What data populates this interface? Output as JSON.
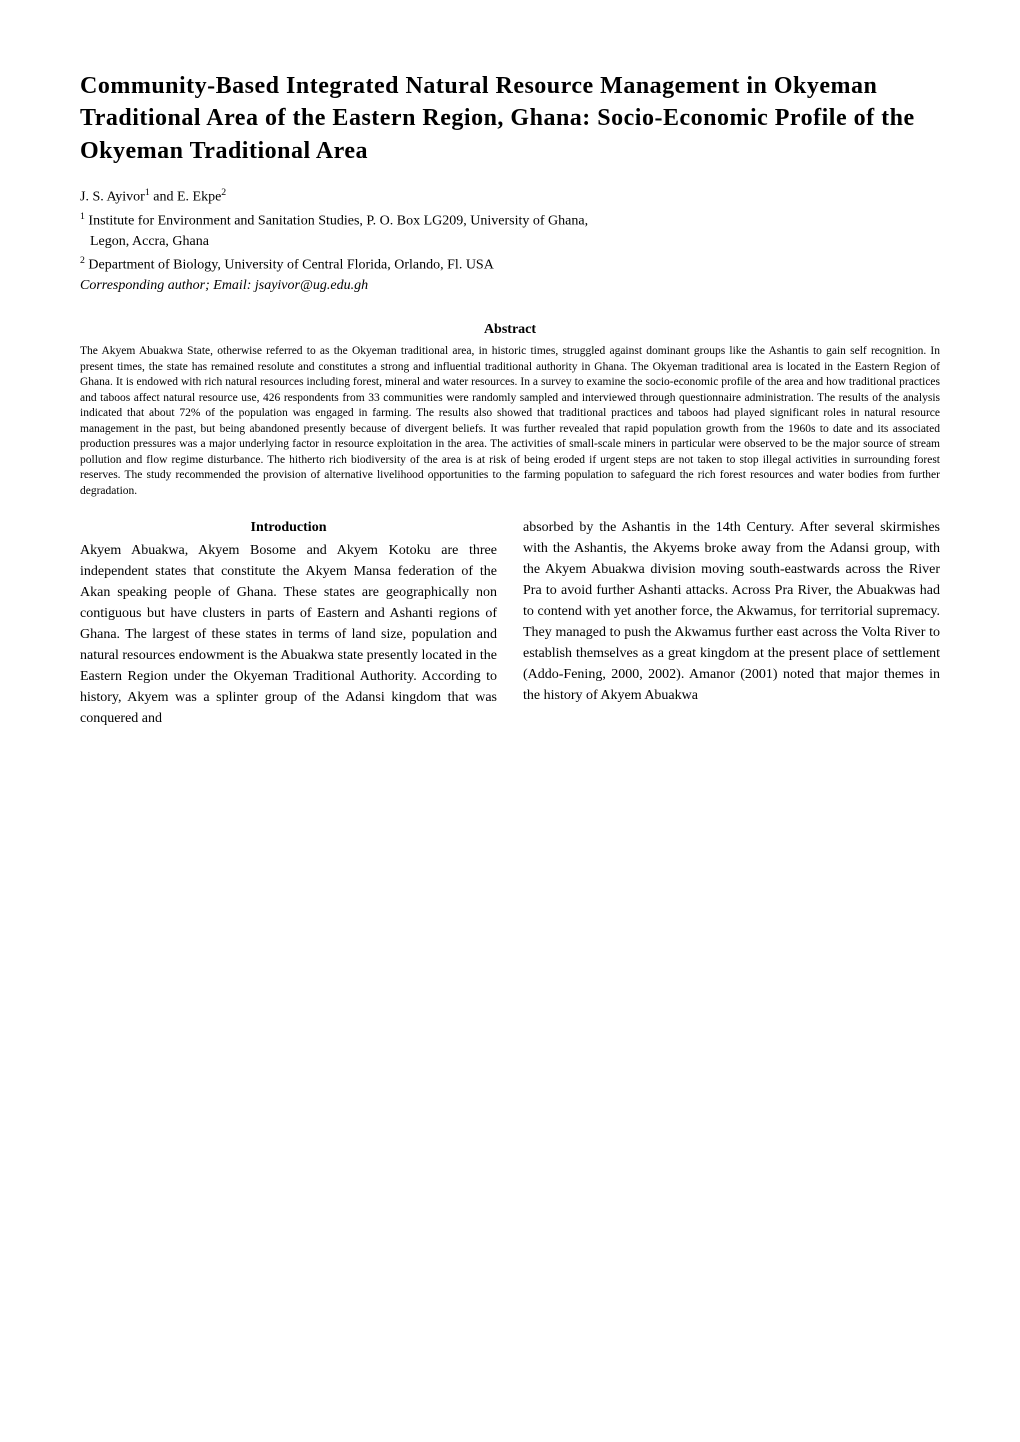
{
  "title": "Community-Based Integrated Natural Resource Management in Okyeman Traditional Area of the Eastern Region, Ghana: Socio-Economic Profile of the Okyeman Traditional Area",
  "authors_html": "J. S. Ayivor<sup>1</sup> and E. Ekpe<sup>2</sup>",
  "affiliations": [
    {
      "marker": "1",
      "line1": "Institute for Environment and Sanitation Studies, P. O. Box LG209, University of Ghana,",
      "line2": "Legon, Accra, Ghana"
    },
    {
      "marker": "2",
      "line1": "Department of Biology, University of Central Florida, Orlando, Fl. USA",
      "line2": ""
    }
  ],
  "corresponding": "Corresponding author; Email: jsayivor@ug.edu.gh",
  "abstract_heading": "Abstract",
  "abstract": "The Akyem Abuakwa State, otherwise referred to as the Okyeman traditional area, in historic times, struggled against dominant groups like the Ashantis to gain self recognition. In present times, the state has remained resolute and constitutes a strong and influential traditional authority in Ghana. The Okyeman traditional area is located in the Eastern Region of Ghana. It is endowed with rich natural resources including forest, mineral and water resources. In a survey to examine the socio-economic profile of the area and how traditional practices and taboos affect natural resource use, 426 respondents from 33 communities were randomly sampled and interviewed through questionnaire administration. The results of the analysis indicated that about 72% of the population was engaged in farming. The results also showed that traditional practices and taboos had played significant roles in natural resource management in the past, but being abandoned presently because of divergent beliefs. It was further revealed that rapid population growth from the 1960s to date and its associated production pressures was a major underlying factor in resource exploitation in the area. The activities of small-scale miners in particular were observed to be the major source of stream pollution and flow regime disturbance. The hitherto rich biodiversity of the area is at risk of being eroded if urgent steps are not taken to stop illegal activities in surrounding forest reserves. The study recommended the provision of alternative livelihood opportunities to the farming population to safeguard the rich forest resources and water bodies from further degradation.",
  "intro_heading": "Introduction",
  "col_left": "Akyem Abuakwa, Akyem Bosome and Akyem Kotoku are three independent states that constitute the Akyem Mansa federation of the Akan speaking people of Ghana. These states are geographically non contiguous but have clusters in parts of Eastern and Ashanti regions of Ghana. The largest of these states in terms of land size, population and natural resources endowment is the Abuakwa state presently located in the Eastern Region under the Okyeman Traditional Authority. According to history, Akyem was a splinter group of the Adansi kingdom that was conquered and",
  "col_right": "absorbed by the Ashantis in the 14th Century. After several skirmishes with the Ashantis, the Akyems broke away from the Adansi group, with the Akyem Abuakwa division moving south-eastwards across the River Pra to avoid further Ashanti attacks. Across Pra River, the Abuakwas had to contend with yet another force, the Akwamus, for territorial supremacy. They managed to push the Akwamus further east across the Volta River to establish themselves as a great kingdom at the present place of settlement (Addo-Fening, 2000, 2002). Amanor (2001) noted that major themes in the history of Akyem Abuakwa",
  "style": {
    "background_color": "#ffffff",
    "text_color": "#000000",
    "title_fontsize": 24,
    "body_fontsize": 14,
    "abstract_fontsize": 11.5,
    "font_family": "Georgia, Times New Roman, serif",
    "column_gap": 26,
    "page_padding": "70px 80px 60px 80px"
  }
}
